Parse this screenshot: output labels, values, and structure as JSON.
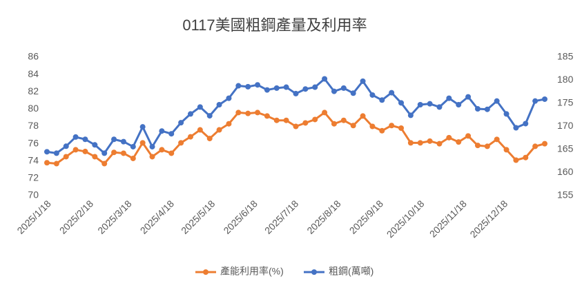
{
  "chart_data": {
    "type": "line",
    "title": "0117美國粗鋼產量及利用率",
    "x": [
      "2025/1/18",
      "2025/1/25",
      "2025/2/1",
      "2025/2/8",
      "2025/2/15",
      "2025/2/22",
      "2025/3/1",
      "2025/3/8",
      "2025/3/15",
      "2025/3/22",
      "2025/3/29",
      "2025/4/5",
      "2025/4/12",
      "2025/4/19",
      "2025/4/26",
      "2025/5/3",
      "2025/5/10",
      "2025/5/17",
      "2025/5/24",
      "2025/5/31",
      "2025/6/7",
      "2025/6/14",
      "2025/6/21",
      "2025/6/28",
      "2025/7/5",
      "2025/7/12",
      "2025/7/19",
      "2025/7/26",
      "2025/8/2",
      "2025/8/9",
      "2025/8/16",
      "2025/8/23",
      "2025/8/30",
      "2025/9/6",
      "2025/9/13",
      "2025/9/20",
      "2025/9/27",
      "2025/10/4",
      "2025/10/11",
      "2025/10/18",
      "2025/10/25",
      "2025/11/1",
      "2025/11/8",
      "2025/11/15",
      "2025/11/22",
      "2025/11/29",
      "2025/12/6",
      "2025/12/13",
      "2025/12/20",
      "2025/12/27",
      "2026/1/3",
      "2026/1/10",
      "2026/1/17"
    ],
    "xlim": [
      "2025/1/18",
      "2026/1/17"
    ],
    "xticks": [
      "2025/1/18",
      "2025/2/18",
      "2025/3/18",
      "2025/4/18",
      "2025/5/18",
      "2025/6/18",
      "2025/7/18",
      "2025/8/18",
      "2025/9/18",
      "2025/10/18",
      "2025/11/18",
      "2025/12/18"
    ],
    "series": [
      {
        "name": "產能利用率(%)",
        "color": "#ed7d31",
        "values": [
          73.8,
          73.7,
          74.5,
          75.3,
          75.1,
          74.5,
          73.7,
          75.0,
          74.9,
          74.3,
          76.1,
          74.5,
          75.3,
          74.9,
          76.1,
          76.8,
          77.6,
          76.6,
          77.6,
          78.3,
          79.6,
          79.5,
          79.6,
          79.2,
          78.7,
          78.7,
          78.0,
          78.4,
          78.8,
          79.6,
          78.3,
          78.7,
          78.1,
          79.2,
          78.0,
          77.5,
          78.1,
          77.8,
          76.1,
          76.1,
          76.3,
          76.0,
          76.7,
          76.2,
          76.9,
          75.8,
          75.7,
          76.5,
          75.3,
          74.1,
          74.4,
          75.7,
          76.0
        ]
      },
      {
        "name": "粗鋼(萬噸)",
        "color": "#4472c4",
        "axis": "y2",
        "values": [
          164.5,
          164.2,
          165.7,
          167.7,
          167.2,
          166.0,
          164.2,
          167.2,
          166.7,
          165.6,
          169.9,
          165.6,
          169.0,
          168.4,
          170.8,
          172.7,
          174.2,
          172.3,
          174.7,
          176.1,
          178.8,
          178.6,
          179.0,
          177.9,
          178.3,
          178.5,
          177.1,
          178.1,
          178.5,
          180.3,
          177.6,
          178.3,
          177.2,
          179.8,
          176.8,
          175.7,
          177.3,
          175.1,
          172.4,
          174.7,
          174.9,
          174.2,
          176.1,
          174.7,
          176.4,
          173.8,
          173.7,
          175.5,
          172.7,
          169.7,
          170.6,
          175.5,
          175.9
        ]
      }
    ],
    "ylim": [
      70,
      86
    ],
    "yticks": [
      70,
      72,
      74,
      76,
      78,
      80,
      82,
      84,
      86
    ],
    "y2lim": [
      155,
      185
    ],
    "y2ticks": [
      155,
      160,
      165,
      170,
      175,
      180,
      185
    ],
    "grid": false,
    "legend": "bottom"
  }
}
